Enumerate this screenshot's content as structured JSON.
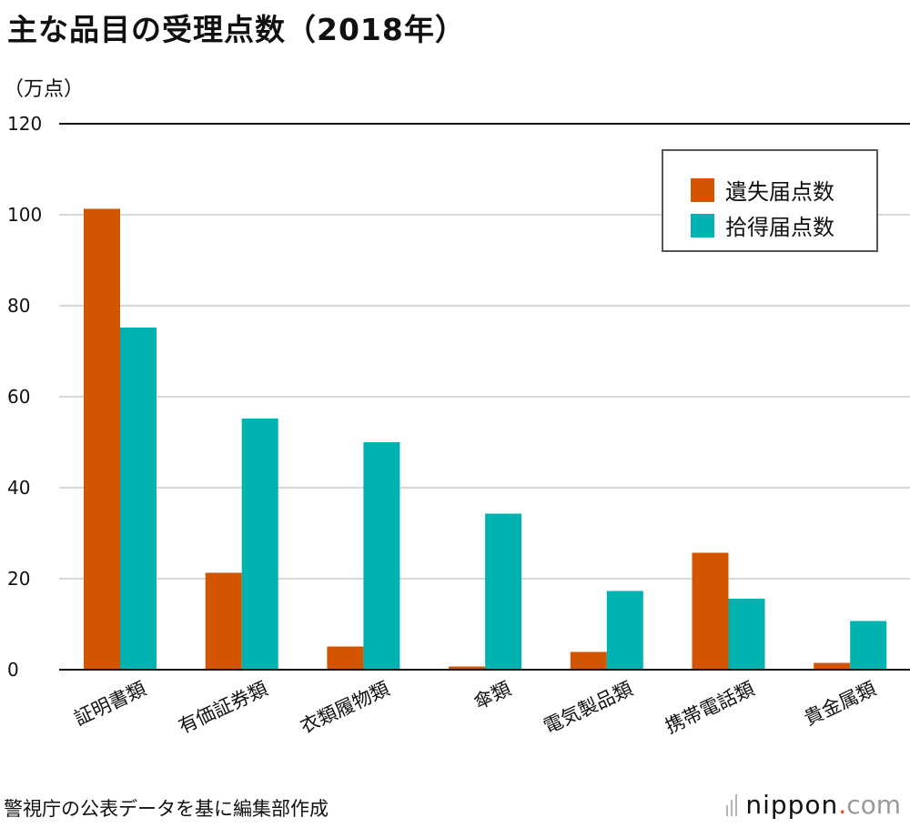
{
  "header": {
    "title": "主な品目の受理点数（2018年）",
    "unit": "（万点）"
  },
  "footer": {
    "source": "警視庁の公表データを基に編集部作成",
    "logo_main": "nippon",
    "logo_dot": ".",
    "logo_tld": "com"
  },
  "colors": {
    "lost": "#d45500",
    "found": "#00b3b0",
    "grid": "#cccccc",
    "axis": "#111111"
  },
  "chart_data": {
    "type": "bar",
    "title": "主な品目の受理点数（2018年）",
    "ylabel": "（万点）",
    "xlabel": "",
    "ylim": [
      0,
      120
    ],
    "yticks": [
      0,
      20,
      40,
      60,
      80,
      100,
      120
    ],
    "grid": true,
    "legend_position": "top-right",
    "categories": [
      "証明書類",
      "有価証券類",
      "衣類履物類",
      "傘類",
      "電気製品類",
      "携帯電話類",
      "貴金属類"
    ],
    "series": [
      {
        "name": "遺失届点数",
        "color": "#d45500",
        "values": [
          101.3,
          21.3,
          5.1,
          0.7,
          3.9,
          25.7,
          1.5
        ]
      },
      {
        "name": "拾得届点数",
        "color": "#00b3b0",
        "values": [
          75.2,
          55.2,
          50.0,
          34.3,
          17.3,
          15.6,
          10.7
        ]
      }
    ]
  }
}
